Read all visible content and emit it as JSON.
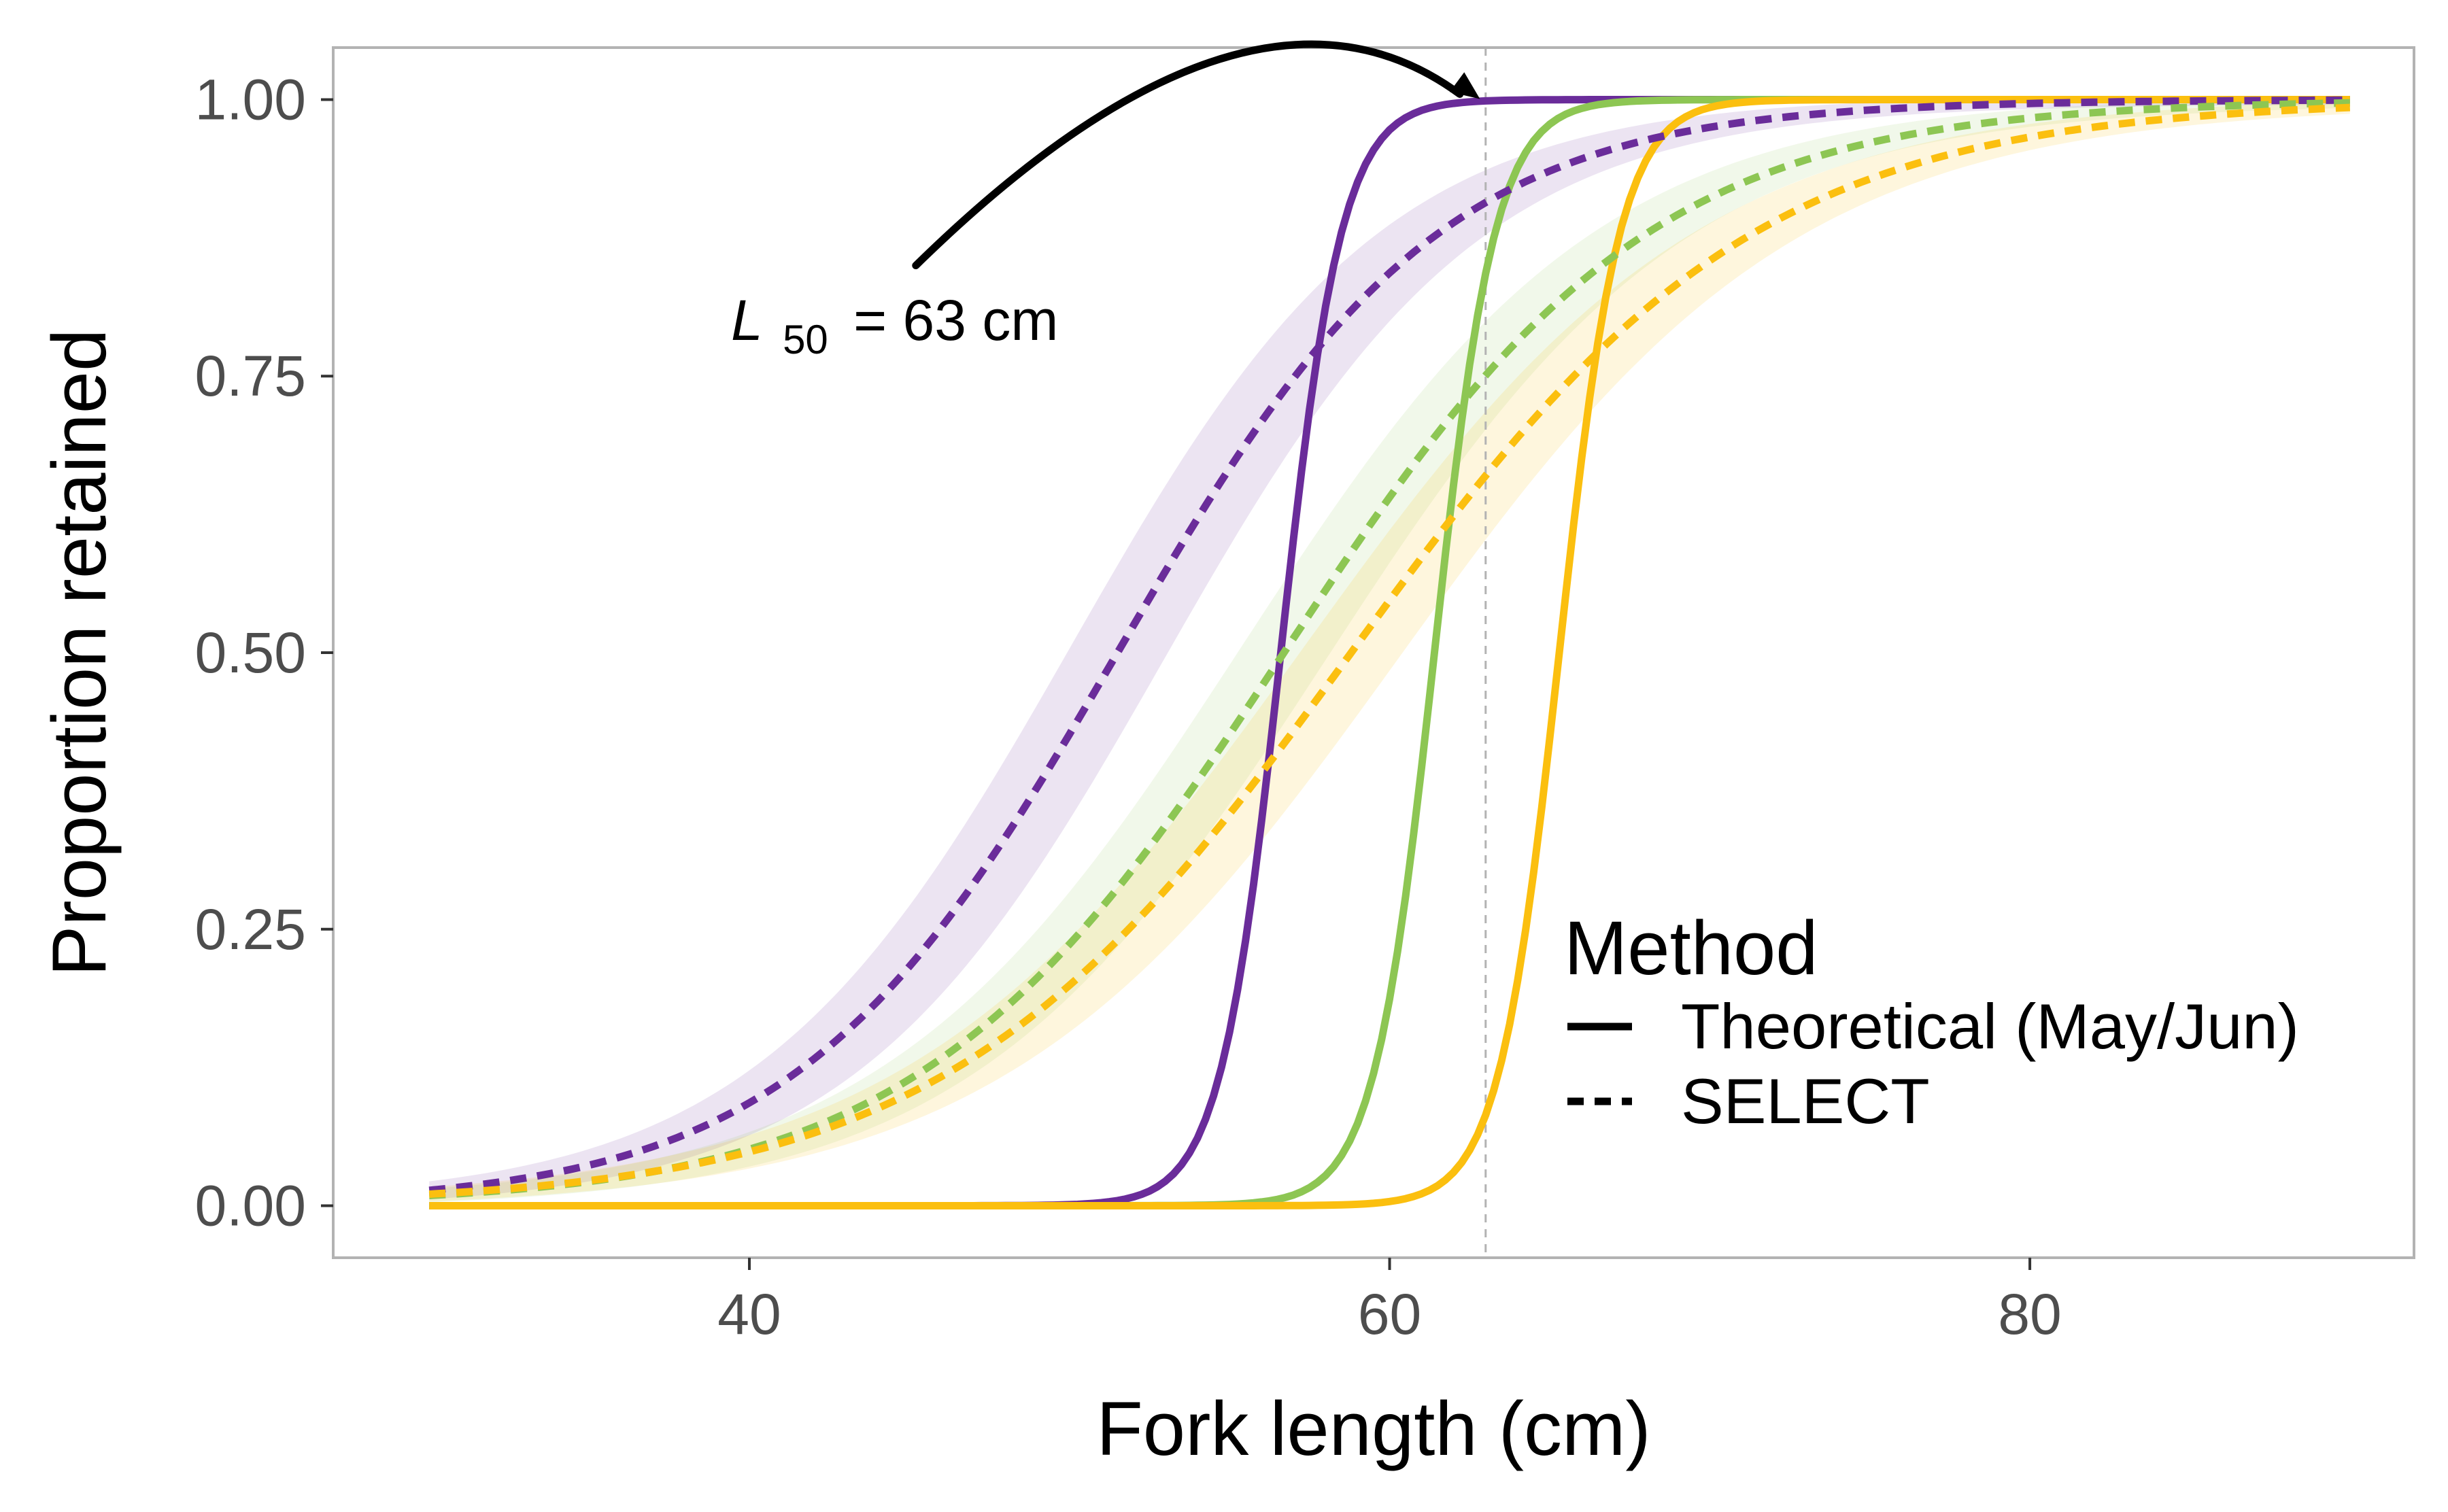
{
  "chart_data": {
    "type": "line",
    "xlabel": "Fork length (cm)",
    "ylabel": "Proportion retained",
    "xlim": [
      27,
      92
    ],
    "ylim": [
      -0.047,
      1.047
    ],
    "x_ticks": [
      40,
      60,
      80
    ],
    "x_tick_labels": [
      "40",
      "60",
      "80"
    ],
    "y_ticks": [
      0,
      0.25,
      0.5,
      0.75,
      1
    ],
    "y_tick_labels": [
      "0.00",
      "0.25",
      "0.50",
      "0.75",
      "1.00"
    ],
    "grid": false,
    "legend": {
      "title": "Method",
      "placement": "bottom-right",
      "entries": [
        {
          "label": "Theoretical (May/Jun)",
          "linetype": "solid"
        },
        {
          "label": "SELECT",
          "linetype": "dashed"
        }
      ]
    },
    "reference_line": {
      "x": 63,
      "style": "dashed",
      "color": "#b3b3b3"
    },
    "annotation": {
      "text_L": "L",
      "text_sub": "50",
      "text_rest": "= 63 cm",
      "arrow_from": [
        45.2,
        0.85
      ],
      "arrow_to": [
        63,
        1.0
      ]
    },
    "curves": [
      {
        "color": "#6a2c9a",
        "linetype": "solid",
        "model": "logistic",
        "l50": 56.6,
        "slope": 1.05,
        "x_range": [
          30,
          90
        ]
      },
      {
        "color": "#8dc653",
        "linetype": "solid",
        "model": "logistic",
        "l50": 61.4,
        "slope": 1.05,
        "x_range": [
          30,
          90
        ]
      },
      {
        "color": "#fbbf0f",
        "linetype": "solid",
        "model": "logistic",
        "l50": 65.3,
        "slope": 1.05,
        "x_range": [
          30,
          90
        ]
      },
      {
        "color": "#6a2c9a",
        "linetype": "dashed",
        "model": "logistic",
        "l50": 51.5,
        "slope": 0.198,
        "band_width": 0.075,
        "band_opacity": 0.13,
        "x_range": [
          30,
          90
        ]
      },
      {
        "color": "#8dc653",
        "linetype": "dashed",
        "model": "logistic",
        "l50": 56.7,
        "slope": 0.175,
        "band_width": 0.06,
        "band_opacity": 0.12,
        "x_range": [
          30,
          90
        ]
      },
      {
        "color": "#fbbf0f",
        "linetype": "dashed",
        "model": "logistic",
        "l50": 58.8,
        "slope": 0.158,
        "band_width": 0.06,
        "band_opacity": 0.14,
        "x_range": [
          30,
          90
        ]
      }
    ]
  }
}
